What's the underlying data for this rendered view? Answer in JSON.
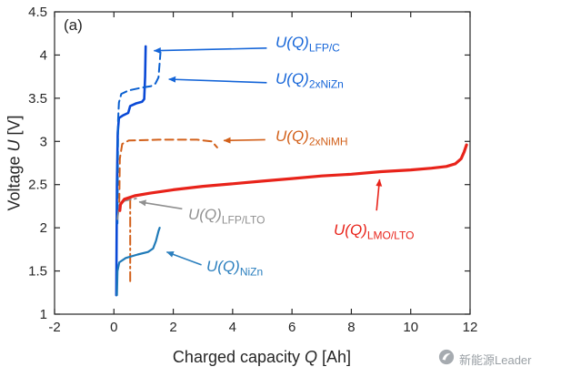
{
  "chart_data": {
    "type": "line",
    "panel_label": "(a)",
    "xlabel": {
      "pre": "Charged capacity ",
      "var": "Q",
      "post": " [Ah]"
    },
    "ylabel": {
      "pre": "Voltage ",
      "var": "U",
      "post": " [V]"
    },
    "xlim": [
      -2,
      12
    ],
    "ylim": [
      1,
      4.5
    ],
    "xticks": [
      -2,
      0,
      2,
      4,
      6,
      8,
      10,
      12
    ],
    "yticks": [
      1,
      1.5,
      2,
      2.5,
      3,
      3.5,
      4,
      4.5
    ],
    "grid": false,
    "legend": "none (arrow annotations on plot)",
    "series": [
      {
        "id": "lfp-c",
        "name": "LFP/C",
        "color": "#0a49d6",
        "width": 2.6,
        "segments": [
          {
            "style": "solid",
            "points": [
              [
                0.08,
                1.22
              ],
              [
                0.1,
                2.5
              ],
              [
                0.13,
                3.1
              ],
              [
                0.17,
                3.27
              ],
              [
                0.3,
                3.3
              ],
              [
                0.48,
                3.33
              ],
              [
                0.55,
                3.41
              ],
              [
                0.75,
                3.44
              ],
              [
                0.95,
                3.46
              ],
              [
                1.02,
                3.49
              ],
              [
                1.05,
                3.75
              ],
              [
                1.07,
                4.1
              ]
            ]
          }
        ]
      },
      {
        "id": "nizn-2x",
        "name": "2xNiZn",
        "color": "#0a5fd0",
        "width": 2,
        "segments": [
          {
            "style": "dashed",
            "points": [
              [
                0.12,
                2.05
              ],
              [
                0.14,
                3.25
              ],
              [
                0.17,
                3.45
              ],
              [
                0.25,
                3.55
              ],
              [
                0.5,
                3.59
              ],
              [
                0.9,
                3.62
              ],
              [
                1.25,
                3.64
              ],
              [
                1.4,
                3.67
              ],
              [
                1.5,
                3.74
              ],
              [
                1.55,
                3.95
              ],
              [
                1.57,
                4.03
              ]
            ]
          }
        ]
      },
      {
        "id": "nimh-2x",
        "name": "2xNiMH",
        "color": "#d2601a",
        "width": 2,
        "segments": [
          {
            "style": "dashed",
            "points": [
              [
                0.18,
                2.3
              ],
              [
                0.2,
                2.8
              ],
              [
                0.28,
                2.97
              ],
              [
                0.5,
                3.01
              ],
              [
                1.5,
                3.02
              ],
              [
                2.8,
                3.02
              ],
              [
                3.3,
                3.0
              ],
              [
                3.48,
                2.93
              ]
            ]
          },
          {
            "style": "dashdot",
            "points": [
              [
                0.55,
                2.33
              ],
              [
                0.55,
                1.38
              ]
            ]
          }
        ]
      },
      {
        "id": "lfp-lto",
        "name": "LFP/LTO",
        "color": "#909090",
        "width": 1.8,
        "segments": [
          {
            "style": "dashdot",
            "points": [
              [
                0.12,
                2.1
              ],
              [
                0.18,
                2.26
              ],
              [
                0.35,
                2.31
              ],
              [
                0.6,
                2.33
              ],
              [
                0.78,
                2.34
              ]
            ]
          }
        ]
      },
      {
        "id": "lmo-lto",
        "name": "LMO/LTO",
        "color": "#e8231a",
        "width": 3.2,
        "segments": [
          {
            "style": "solid",
            "points": [
              [
                0.2,
                2.2
              ],
              [
                0.22,
                2.27
              ],
              [
                0.35,
                2.33
              ],
              [
                0.7,
                2.37
              ],
              [
                1.2,
                2.4
              ],
              [
                2,
                2.44
              ],
              [
                3,
                2.48
              ],
              [
                4,
                2.51
              ],
              [
                5,
                2.54
              ],
              [
                6,
                2.57
              ],
              [
                7,
                2.6
              ],
              [
                8,
                2.62
              ],
              [
                9,
                2.65
              ],
              [
                10,
                2.67
              ],
              [
                10.7,
                2.69
              ],
              [
                11.2,
                2.71
              ],
              [
                11.5,
                2.74
              ],
              [
                11.7,
                2.8
              ],
              [
                11.8,
                2.88
              ],
              [
                11.88,
                2.96
              ]
            ]
          }
        ]
      },
      {
        "id": "nizn",
        "name": "NiZn",
        "color": "#1f7ab8",
        "width": 2.2,
        "segments": [
          {
            "style": "solid",
            "points": [
              [
                0.1,
                1.22
              ],
              [
                0.12,
                1.5
              ],
              [
                0.18,
                1.6
              ],
              [
                0.4,
                1.65
              ],
              [
                0.8,
                1.69
              ],
              [
                1.15,
                1.72
              ],
              [
                1.32,
                1.76
              ],
              [
                1.42,
                1.85
              ],
              [
                1.5,
                1.96
              ],
              [
                1.54,
                2.0
              ]
            ]
          }
        ]
      }
    ],
    "annotations": [
      {
        "id": "lfpc",
        "main": "U(Q)",
        "sub": "LFP/C",
        "color": "#1565d8",
        "arrow": {
          "from": [
            5.15,
            4.08
          ],
          "to": [
            1.35,
            4.05
          ]
        }
      },
      {
        "id": "nizn2x",
        "main": "U(Q)",
        "sub": "2xNiZn",
        "color": "#1565d8",
        "arrow": {
          "from": [
            5.15,
            3.68
          ],
          "to": [
            1.85,
            3.72
          ]
        }
      },
      {
        "id": "nimh",
        "main": "U(Q)",
        "sub": "2xNiMH",
        "color": "#d2601a",
        "arrow": {
          "from": [
            5.1,
            3.02
          ],
          "to": [
            3.7,
            3.01
          ]
        }
      },
      {
        "id": "lfplto",
        "main": "U(Q)",
        "sub": "LFP/LTO",
        "color": "#909090",
        "arrow": {
          "from": [
            2.3,
            2.22
          ],
          "to": [
            0.85,
            2.3
          ]
        }
      },
      {
        "id": "lmolto",
        "main": "U(Q)",
        "sub": "LMO/LTO",
        "color": "#e8231a",
        "arrow": {
          "from": [
            8.85,
            2.2
          ],
          "to": [
            8.95,
            2.56
          ]
        }
      },
      {
        "id": "nizn",
        "main": "U(Q)",
        "sub": "NiZn",
        "color": "#2b7fbe",
        "arrow": {
          "from": [
            2.95,
            1.57
          ],
          "to": [
            1.78,
            1.72
          ]
        }
      }
    ]
  },
  "watermark": {
    "text": "新能源Leader"
  }
}
